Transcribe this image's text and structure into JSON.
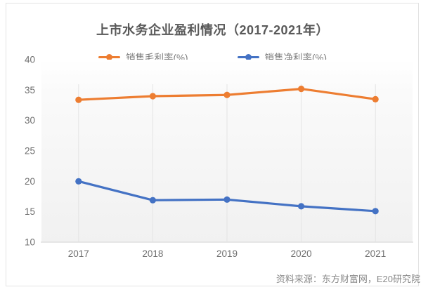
{
  "title": "上市水务企业盈利情况（2017-2021年）",
  "source_note": "资料来源：东方财富网，E20研究院",
  "chart_data": {
    "type": "line",
    "title": "上市水务企业盈利情况（2017-2021年）",
    "categories": [
      "2017",
      "2018",
      "2019",
      "2020",
      "2021"
    ],
    "series": [
      {
        "name": "销售毛利率(%)",
        "color": "#ED7D31",
        "values": [
          33.4,
          34.0,
          34.2,
          35.2,
          33.5
        ]
      },
      {
        "name": "销售净利率(%)",
        "color": "#4472C4",
        "values": [
          20.0,
          16.9,
          17.0,
          15.9,
          15.1
        ]
      }
    ],
    "ylim": [
      10,
      40
    ],
    "yticks": [
      10,
      15,
      20,
      25,
      30,
      35,
      40
    ],
    "xlabel": "",
    "ylabel": "",
    "grid": "vertical",
    "legend_position": "top",
    "source": "资料来源：东方财富网，E20研究院"
  },
  "style": {
    "title_color": "#595959",
    "axis_label_color": "#6f6f6f",
    "legend_text_color": "#7b7b7b",
    "source_color": "#8a8a8a",
    "gridline_color": "#e4e4e4",
    "axis_line_color": "#d2d2d2",
    "card_border_color": "#e3e3e3",
    "plot_bg_top": "#ffffff",
    "plot_bg_bottom": "#f1f1f1"
  }
}
